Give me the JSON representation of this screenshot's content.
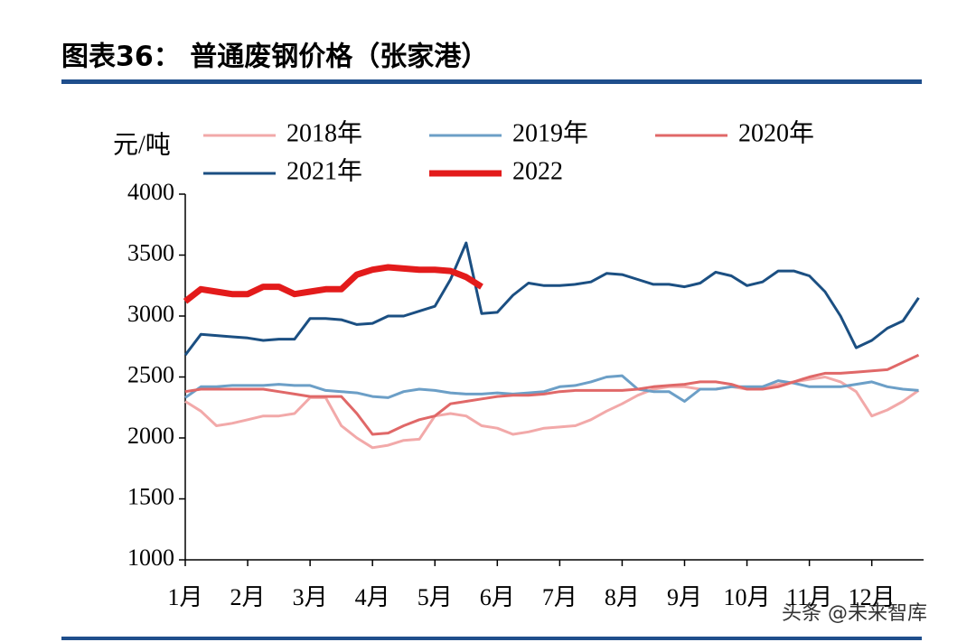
{
  "chart_data": {
    "type": "line",
    "title": "图表36：  普通废钢价格（张家港）",
    "y_label": "元/吨",
    "annotation": "头条 @未来智库",
    "x": [
      1,
      1.25,
      1.5,
      1.75,
      2,
      2.25,
      2.5,
      2.75,
      3,
      3.25,
      3.5,
      3.75,
      4,
      4.25,
      4.5,
      4.75,
      5,
      5.25,
      5.5,
      5.75,
      6,
      6.25,
      6.5,
      6.75,
      7,
      7.25,
      7.5,
      7.75,
      8,
      8.25,
      8.5,
      8.75,
      9,
      9.25,
      9.5,
      9.75,
      10,
      10.25,
      10.5,
      10.75,
      11,
      11.25,
      11.5,
      11.75,
      12,
      12.25,
      12.5,
      12.75
    ],
    "xlim": [
      1,
      12.83
    ],
    "xticks": [
      {
        "value": 1,
        "label": "1月"
      },
      {
        "value": 2,
        "label": "2月"
      },
      {
        "value": 3,
        "label": "3月"
      },
      {
        "value": 4,
        "label": "4月"
      },
      {
        "value": 5,
        "label": "5月"
      },
      {
        "value": 6,
        "label": "6月"
      },
      {
        "value": 7,
        "label": "7月"
      },
      {
        "value": 8,
        "label": "8月"
      },
      {
        "value": 9,
        "label": "9月"
      },
      {
        "value": 10,
        "label": "10月"
      },
      {
        "value": 11,
        "label": "11月"
      },
      {
        "value": 12,
        "label": "12月"
      }
    ],
    "ylim": [
      1000,
      4000
    ],
    "yticks": [
      1000,
      1500,
      2000,
      2500,
      3000,
      3500,
      4000
    ],
    "series": [
      {
        "name": "2018年",
        "color": "#f2a9a9",
        "width": 3,
        "values": [
          2300,
          2220,
          2100,
          2120,
          2150,
          2180,
          2180,
          2200,
          2330,
          2330,
          2100,
          2000,
          1920,
          1940,
          1980,
          1990,
          2180,
          2200,
          2180,
          2100,
          2080,
          2030,
          2050,
          2080,
          2090,
          2100,
          2150,
          2220,
          2280,
          2350,
          2400,
          2420,
          2420,
          2400,
          2400,
          2420,
          2400,
          2420,
          2440,
          2460,
          2480,
          2500,
          2460,
          2380,
          2180,
          2230,
          2300,
          2390
        ]
      },
      {
        "name": "2019年",
        "color": "#6c9fc7",
        "width": 3,
        "values": [
          2330,
          2420,
          2420,
          2430,
          2430,
          2430,
          2440,
          2430,
          2430,
          2390,
          2380,
          2370,
          2340,
          2330,
          2380,
          2400,
          2390,
          2370,
          2360,
          2360,
          2370,
          2360,
          2370,
          2380,
          2420,
          2430,
          2460,
          2500,
          2510,
          2400,
          2380,
          2380,
          2300,
          2400,
          2400,
          2420,
          2420,
          2420,
          2470,
          2450,
          2420,
          2420,
          2420,
          2440,
          2460,
          2420,
          2400,
          2390
        ]
      },
      {
        "name": "2020年",
        "color": "#e06868",
        "width": 3,
        "values": [
          2380,
          2400,
          2400,
          2400,
          2400,
          2400,
          2380,
          2360,
          2340,
          2340,
          2340,
          2200,
          2030,
          2040,
          2100,
          2150,
          2180,
          2280,
          2300,
          2320,
          2340,
          2350,
          2350,
          2360,
          2380,
          2390,
          2390,
          2390,
          2390,
          2400,
          2420,
          2430,
          2440,
          2460,
          2460,
          2440,
          2400,
          2400,
          2420,
          2460,
          2500,
          2530,
          2530,
          2540,
          2550,
          2560,
          2620,
          2680
        ]
      },
      {
        "name": "2021年",
        "color": "#1b4f82",
        "width": 3,
        "values": [
          2680,
          2850,
          2840,
          2830,
          2820,
          2800,
          2810,
          2810,
          2980,
          2980,
          2970,
          2930,
          2940,
          3000,
          3000,
          3040,
          3080,
          3300,
          3600,
          3020,
          3030,
          3170,
          3270,
          3250,
          3250,
          3260,
          3280,
          3350,
          3340,
          3300,
          3260,
          3260,
          3240,
          3270,
          3360,
          3330,
          3250,
          3280,
          3370,
          3370,
          3330,
          3200,
          3000,
          2740,
          2800,
          2900,
          2960,
          3150
        ]
      },
      {
        "name": "2022",
        "color": "#e31b1b",
        "width": 7,
        "values": [
          3120,
          3220,
          3200,
          3180,
          3180,
          3240,
          3240,
          3180,
          3200,
          3220,
          3220,
          3340,
          3380,
          3400,
          3390,
          3380,
          3380,
          3370,
          3320,
          3240,
          null,
          null,
          null,
          null,
          null,
          null,
          null,
          null,
          null,
          null,
          null,
          null,
          null,
          null,
          null,
          null,
          null,
          null,
          null,
          null,
          null,
          null,
          null,
          null,
          null,
          null,
          null,
          null
        ]
      }
    ]
  }
}
